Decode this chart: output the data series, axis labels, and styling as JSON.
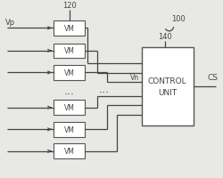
{
  "bg_color": "#e8e8e4",
  "line_color": "#444444",
  "box_color": "#ffffff",
  "box_edge_color": "#555555",
  "label_120": "120",
  "label_100": "100",
  "label_140": "140",
  "label_vp": "Vp",
  "label_vm": "VM",
  "label_vn": "Vn",
  "label_cs": "CS",
  "label_control": "CONTROL\nUNIT",
  "dots": "...",
  "figsize": [
    2.5,
    2.01
  ],
  "dpi": 100
}
